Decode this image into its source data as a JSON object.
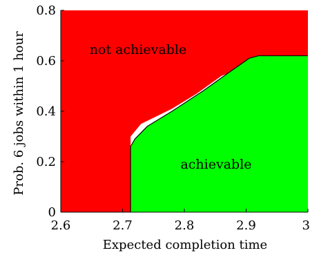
{
  "chart_data": {
    "type": "area",
    "xlabel": "Expected completion time",
    "ylabel": "Prob. 6 jobs within 1 hour",
    "xlim": [
      2.6,
      3.0
    ],
    "ylim": [
      0,
      0.8
    ],
    "xticks": [
      2.6,
      2.7,
      2.8,
      2.9,
      3.0
    ],
    "xtick_labels": [
      "2.6",
      "2.7",
      "2.8",
      "2.9",
      "3"
    ],
    "yticks": [
      0,
      0.2,
      0.4,
      0.6,
      0.8
    ],
    "ytick_labels": [
      "0",
      "0.2",
      "0.4",
      "0.6",
      "0.8"
    ],
    "grid": false,
    "regions": [
      {
        "label": "not achievable",
        "color": "#ff0000"
      },
      {
        "label": "achievable",
        "color": "#00ff00"
      }
    ],
    "achievable_frontier": {
      "x": [
        2.713,
        2.713,
        2.72,
        2.74,
        2.78,
        2.83,
        2.87,
        2.905,
        2.92,
        3.0
      ],
      "y": [
        0.0,
        0.26,
        0.29,
        0.34,
        0.4,
        0.48,
        0.55,
        0.61,
        0.62,
        0.62
      ]
    },
    "not_achievable_frontier": {
      "x": [
        2.713,
        2.713,
        2.73,
        2.78,
        2.82,
        2.86,
        2.9,
        2.918,
        3.0
      ],
      "y": [
        0.0,
        0.3,
        0.35,
        0.41,
        0.47,
        0.54,
        0.58,
        0.595,
        0.595
      ]
    },
    "boundary_color": "#ffffff"
  }
}
